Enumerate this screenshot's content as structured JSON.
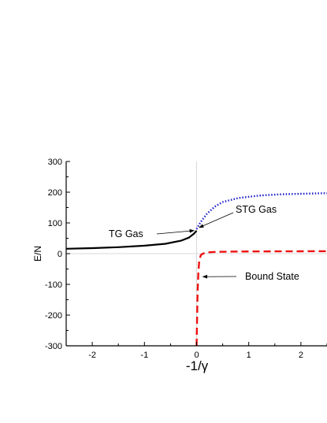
{
  "chart_data": {
    "type": "line",
    "title": "",
    "xlabel": "-1/γ",
    "ylabel": "E/N",
    "xlim": [
      -2.5,
      2.5
    ],
    "ylim": [
      -300,
      300
    ],
    "xticks": [
      -2,
      -1,
      0,
      1,
      2
    ],
    "yticks": [
      300,
      200,
      100,
      0,
      -100,
      -200,
      -300
    ],
    "grid": false,
    "reference_lines": [
      "x=0",
      "y=0"
    ],
    "series": [
      {
        "name": "TG Gas",
        "style": "solid",
        "color": "#000000",
        "x": [
          -2.5,
          -2.0,
          -1.5,
          -1.0,
          -0.6,
          -0.3,
          -0.15,
          -0.05,
          0.0
        ],
        "y": [
          16,
          18,
          21,
          26,
          32,
          42,
          52,
          65,
          75
        ]
      },
      {
        "name": "STG Gas",
        "style": "dotted",
        "color": "#1a1acc",
        "x": [
          0.0,
          0.05,
          0.1,
          0.2,
          0.35,
          0.5,
          0.8,
          1.2,
          1.6,
          2.0,
          2.5
        ],
        "y": [
          80,
          95,
          108,
          130,
          153,
          168,
          181,
          189,
          193,
          195,
          197
        ]
      },
      {
        "name": "Bound State",
        "style": "dashed",
        "color": "#ee1111",
        "x": [
          0.0,
          0.01,
          0.02,
          0.035,
          0.05,
          0.08,
          0.12,
          0.2,
          0.4,
          0.8,
          1.5,
          2.5
        ],
        "y": [
          -300,
          -200,
          -120,
          -60,
          -25,
          -5,
          0,
          4,
          6,
          7,
          7.5,
          8
        ]
      }
    ],
    "annotations": [
      {
        "text": "TG Gas",
        "arrow_to": [
          -0.05,
          75
        ]
      },
      {
        "text": "STG Gas",
        "arrow_to": [
          0.05,
          85
        ]
      },
      {
        "text": "Bound State",
        "arrow_to": [
          0.12,
          -75
        ]
      }
    ]
  }
}
